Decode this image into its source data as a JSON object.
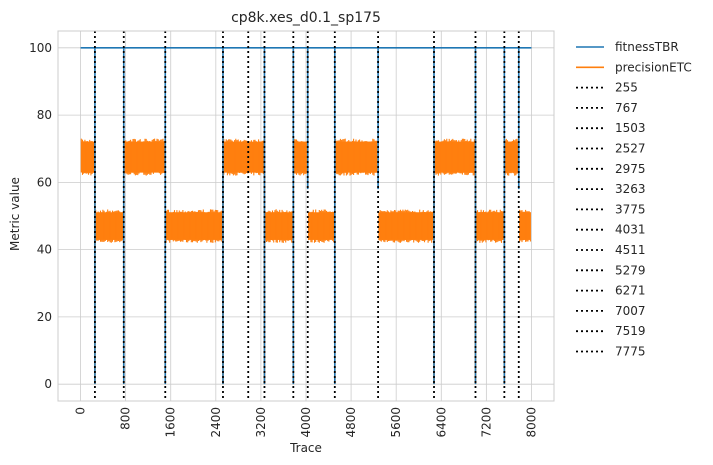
{
  "chart_data": {
    "type": "line",
    "title": "cp8k.xes_d0.1_sp175",
    "xlabel": "Trace",
    "ylabel": "Metric value",
    "xlim": [
      -400,
      8400
    ],
    "ylim": [
      -5,
      105
    ],
    "xticks": [
      0,
      800,
      1600,
      2400,
      3200,
      4000,
      4800,
      5600,
      6400,
      7200,
      8000
    ],
    "xtick_labels": [
      "0",
      "800",
      "1600",
      "2400",
      "3200",
      "4000",
      "4800",
      "5600",
      "6400",
      "7200",
      "8000"
    ],
    "yticks": [
      0,
      20,
      40,
      60,
      80,
      100
    ],
    "ytick_labels": [
      "0",
      "20",
      "40",
      "60",
      "80",
      "100"
    ],
    "grid": true,
    "legend_position": "outside-right",
    "series": [
      {
        "name": "fitnessTBR",
        "color": "#1f77b4",
        "style": "solid",
        "description": "constant 100 with brief drops at drift points",
        "points": [
          [
            0,
            100
          ],
          [
            8000,
            100
          ]
        ],
        "drops": [
          [
            255,
            0
          ],
          [
            767,
            0
          ],
          [
            1503,
            0
          ],
          [
            2527,
            0
          ],
          [
            3263,
            0
          ],
          [
            3775,
            0
          ],
          [
            4031,
            58
          ],
          [
            4511,
            0
          ],
          [
            5279,
            58
          ],
          [
            6271,
            0
          ],
          [
            7007,
            0
          ],
          [
            7519,
            0
          ],
          [
            7775,
            58
          ]
        ]
      },
      {
        "name": "precisionETC",
        "color": "#ff7f0e",
        "style": "solid",
        "segments": [
          {
            "x": [
              0,
              255
            ],
            "low": 62,
            "high": 73
          },
          {
            "x": [
              255,
              767
            ],
            "low": 42,
            "high": 52
          },
          {
            "x": [
              767,
              1503
            ],
            "low": 62,
            "high": 73
          },
          {
            "x": [
              1503,
              2527
            ],
            "low": 42,
            "high": 52
          },
          {
            "x": [
              2527,
              3263
            ],
            "low": 62,
            "high": 73
          },
          {
            "x": [
              3263,
              3775
            ],
            "low": 42,
            "high": 52
          },
          {
            "x": [
              3775,
              4031
            ],
            "low": 62,
            "high": 73
          },
          {
            "x": [
              4031,
              4511
            ],
            "low": 42,
            "high": 52
          },
          {
            "x": [
              4511,
              5279
            ],
            "low": 62,
            "high": 73
          },
          {
            "x": [
              5279,
              6271
            ],
            "low": 42,
            "high": 52
          },
          {
            "x": [
              6271,
              7007
            ],
            "low": 62,
            "high": 73
          },
          {
            "x": [
              7007,
              7519
            ],
            "low": 42,
            "high": 52
          },
          {
            "x": [
              7519,
              7775
            ],
            "low": 62,
            "high": 73
          },
          {
            "x": [
              7775,
              8000
            ],
            "low": 42,
            "high": 52
          }
        ],
        "drops_to_zero_at": [
          255,
          767,
          1503,
          2527,
          3263,
          3775,
          4511,
          6271,
          7007,
          7519
        ]
      }
    ],
    "drift_lines": {
      "color": "#000000",
      "style": "dotted",
      "values": [
        255,
        767,
        1503,
        2527,
        2975,
        3263,
        3775,
        4031,
        4511,
        5279,
        6271,
        7007,
        7519,
        7775
      ],
      "labels": [
        "255",
        "767",
        "1503",
        "2527",
        "2975",
        "3263",
        "3775",
        "4031",
        "4511",
        "5279",
        "6271",
        "7007",
        "7519",
        "7775"
      ]
    }
  }
}
